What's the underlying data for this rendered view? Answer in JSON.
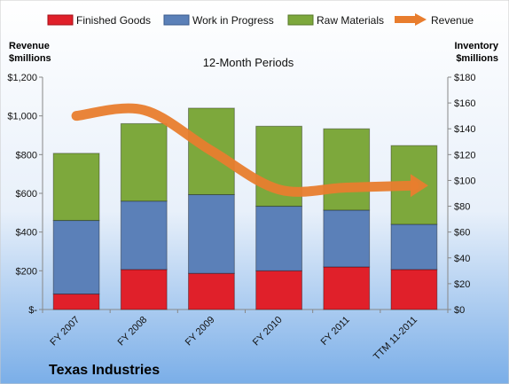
{
  "chart_data": {
    "type": "bar",
    "stacked": true,
    "subtitle": "12-Month Periods",
    "company": "Texas Industries",
    "left_axis_title": [
      "Revenue",
      "$millions"
    ],
    "right_axis_title": [
      "Inventory",
      "$millions"
    ],
    "categories": [
      "FY 2007",
      "FY 2008",
      "FY 2009",
      "FY 2010",
      "FY 2011",
      "TTM 11-2011"
    ],
    "series": [
      {
        "name": "Finished Goods",
        "axis": "right",
        "color": "#e0202a",
        "values": [
          12,
          31,
          28,
          30,
          33,
          31
        ]
      },
      {
        "name": "Work in Progress",
        "axis": "right",
        "color": "#5b80b8",
        "values": [
          57,
          53,
          61,
          50,
          44,
          35
        ]
      },
      {
        "name": "Raw Materials",
        "axis": "right",
        "color": "#7da83c",
        "values": [
          52,
          60,
          67,
          62,
          63,
          61
        ]
      }
    ],
    "line_series": {
      "name": "Revenue",
      "axis": "left",
      "color": "#e87d2e",
      "values": [
        1000,
        1030,
        820,
        620,
        630,
        640
      ]
    },
    "left_axis": {
      "min": 0,
      "max": 1200,
      "ticks": [
        "$-",
        "$200",
        "$400",
        "$600",
        "$800",
        "$1,000",
        "$1,200"
      ]
    },
    "right_axis": {
      "min": 0,
      "max": 180,
      "ticks": [
        "$0",
        "$20",
        "$40",
        "$60",
        "$80",
        "$100",
        "$120",
        "$140",
        "$160",
        "$180"
      ]
    },
    "legend_position": "top",
    "grid": false
  }
}
